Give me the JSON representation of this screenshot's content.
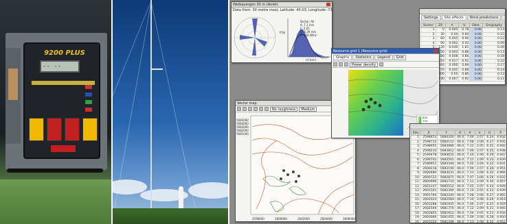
{
  "logger": {
    "model": "9200 PLUS",
    "lcd": "-- --"
  },
  "wind_analysis": {
    "title": "Weibayergen 30 m (Anlet)",
    "header": "Data from: 30 metre mast, Latitude -45.03, Longitude -73.00",
    "stats": [
      "Sector: All",
      "A: 7.1 m/s",
      "k: 2.01",
      "U: 6.29 m/s",
      "P: 416 W/m²"
    ],
    "freq_axis": "f(%)",
    "speed_axis": "U [m/s]"
  },
  "report": {
    "tabs": [
      "Settings",
      "Site effects",
      "Wind predictions",
      "Wind conversions"
    ],
    "columns": [
      "Sector",
      "Z0",
      "A",
      "U",
      "Obst.",
      "Orography"
    ],
    "rows": [
      [
        "1",
        "0",
        "0.005",
        "0.78",
        "0.00",
        "0.13"
      ],
      [
        "2",
        "30",
        "0.04",
        "0.84",
        "0.00",
        "0.15"
      ],
      [
        "3",
        "60",
        "0.005",
        "0.90",
        "0.00",
        "0.12"
      ],
      [
        "4",
        "90",
        "0.002",
        "0.92",
        "0.00",
        "0.09"
      ],
      [
        "5",
        "120",
        "0.030",
        "1.81",
        "0.00",
        "0.26"
      ],
      [
        "6",
        "150",
        "0.003",
        "0.88",
        "0.00",
        "0.13"
      ],
      [
        "7",
        "180",
        "0.008",
        "0.86",
        "0.00",
        "0.18"
      ],
      [
        "8",
        "210",
        "0.017",
        "0.91",
        "0.00",
        "0.22"
      ],
      [
        "9",
        "240",
        "0.006",
        "0.89",
        "0.00",
        "0.17"
      ],
      [
        "10",
        "270",
        "0.005",
        "0.88",
        "0.00",
        "0.14"
      ],
      [
        "11",
        "300",
        "0.05",
        "0.86",
        "0.00",
        "0.13"
      ],
      [
        "12",
        "330",
        "0.007",
        "0.92",
        "0.00",
        "0.11"
      ]
    ]
  },
  "resource_grid": {
    "title": "Resource grid 1 (Resource grid)",
    "tabs": [
      "Graphic",
      "Statistics",
      "Legend",
      "Grid"
    ],
    "toolbar_combo": "Power density",
    "legend_values": [
      "800",
      "700",
      "600",
      "500",
      "400"
    ]
  },
  "vector_map": {
    "title": "Vector map",
    "combo1": "No roughness",
    "combo2": "Medium",
    "y_labels": [
      "5685000",
      "5684000",
      "5683000",
      "5682000",
      "5681000"
    ],
    "x_labels": [
      "2598000",
      "2600000",
      "2602000",
      "2604000",
      "2606000"
    ]
  },
  "turbine_list": {
    "columns": [
      "Site",
      "X",
      "Y",
      "H",
      "A",
      "k",
      "U",
      "P"
    ],
    "rows": [
      [
        "1",
        "2598453",
        "5684320",
        "46.0",
        "7.04",
        "2.07",
        "6.24",
        "4.932"
      ],
      [
        "2",
        "2598712",
        "5684112",
        "46.0",
        "7.08",
        "2.08",
        "6.27",
        "4.935"
      ],
      [
        "3",
        "2598955",
        "5683980",
        "46.0",
        "7.12",
        "2.05",
        "6.31",
        "4.942"
      ],
      [
        "4",
        "2599210",
        "5683812",
        "46.0",
        "7.06",
        "2.07",
        "6.25",
        "4.938"
      ],
      [
        "5",
        "2599478",
        "5683655",
        "46.0",
        "7.10",
        "2.06",
        "6.29",
        "4.947"
      ],
      [
        "6",
        "2599702",
        "5683501",
        "46.0",
        "7.15",
        "2.09",
        "6.33",
        "4.939"
      ],
      [
        "7",
        "2599951",
        "5683344",
        "46.0",
        "7.02",
        "2.04",
        "6.22",
        "4.931"
      ],
      [
        "8",
        "2600218",
        "5683190",
        "46.0",
        "7.09",
        "2.07",
        "6.28",
        "4.951"
      ],
      [
        "9",
        "2600480",
        "5683031",
        "46.0",
        "7.13",
        "2.08",
        "6.32",
        "4.966"
      ],
      [
        "10",
        "2600722",
        "5682875",
        "46.0",
        "7.07",
        "2.06",
        "6.26",
        "4.932"
      ],
      [
        "11",
        "2600990",
        "5682710",
        "46.0",
        "7.11",
        "2.09",
        "6.30",
        "4.957"
      ],
      [
        "12",
        "2601247",
        "5682552",
        "46.0",
        "7.05",
        "2.07",
        "6.24",
        "4.928"
      ],
      [
        "13",
        "2601501",
        "5682394",
        "46.0",
        "7.14",
        "2.05",
        "6.33",
        "4.939"
      ],
      [
        "14",
        "2601760",
        "5682240",
        "46.0",
        "7.08",
        "2.06",
        "6.27",
        "4.902"
      ],
      [
        "15",
        "2602024",
        "5682083",
        "46.0",
        "7.10",
        "2.08",
        "6.29",
        "4.919"
      ],
      [
        "16",
        "2602288",
        "5681925",
        "46.0",
        "7.06",
        "2.07",
        "6.25",
        "4.929"
      ],
      [
        "17",
        "2602540",
        "5681770",
        "46.0",
        "7.12",
        "2.09",
        "6.31",
        "4.945"
      ],
      [
        "18",
        "2602805",
        "5681612",
        "46.0",
        "7.04",
        "2.05",
        "6.23",
        "4.934"
      ],
      [
        "19",
        "2603066",
        "5681455",
        "46.0",
        "7.09",
        "2.06",
        "6.28",
        "4.950"
      ],
      [
        "20",
        "2603320",
        "5681298",
        "46.0",
        "7.13",
        "2.08",
        "6.32",
        "4.952"
      ],
      [
        "21",
        "2603581",
        "5681140",
        "46.0",
        "7.07",
        "2.07",
        "6.26",
        "4.940"
      ]
    ]
  }
}
